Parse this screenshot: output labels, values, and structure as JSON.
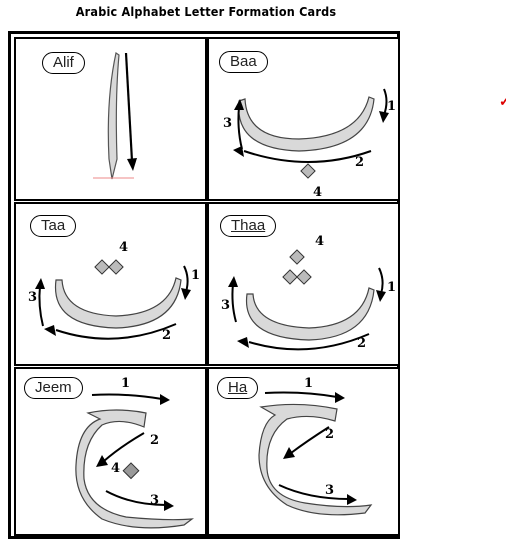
{
  "title": "Arabic Alphabet Letter Formation Cards",
  "cards": [
    {
      "name": "Alif",
      "strokes": []
    },
    {
      "name": "Baa",
      "strokes": [
        "1",
        "2",
        "3",
        "4"
      ]
    },
    {
      "name": "Taa",
      "strokes": [
        "1",
        "2",
        "3",
        "4"
      ]
    },
    {
      "name": "Thaa",
      "strokes": [
        "1",
        "2",
        "3",
        "4"
      ]
    },
    {
      "name": "Jeem",
      "strokes": [
        "1",
        "2",
        "3",
        "4"
      ]
    },
    {
      "name": "Ha",
      "strokes": [
        "1",
        "2",
        "3"
      ]
    }
  ],
  "colors": {
    "border": "#000000",
    "letter_fill": "#d9d9d9",
    "mark": "#dd0000"
  }
}
